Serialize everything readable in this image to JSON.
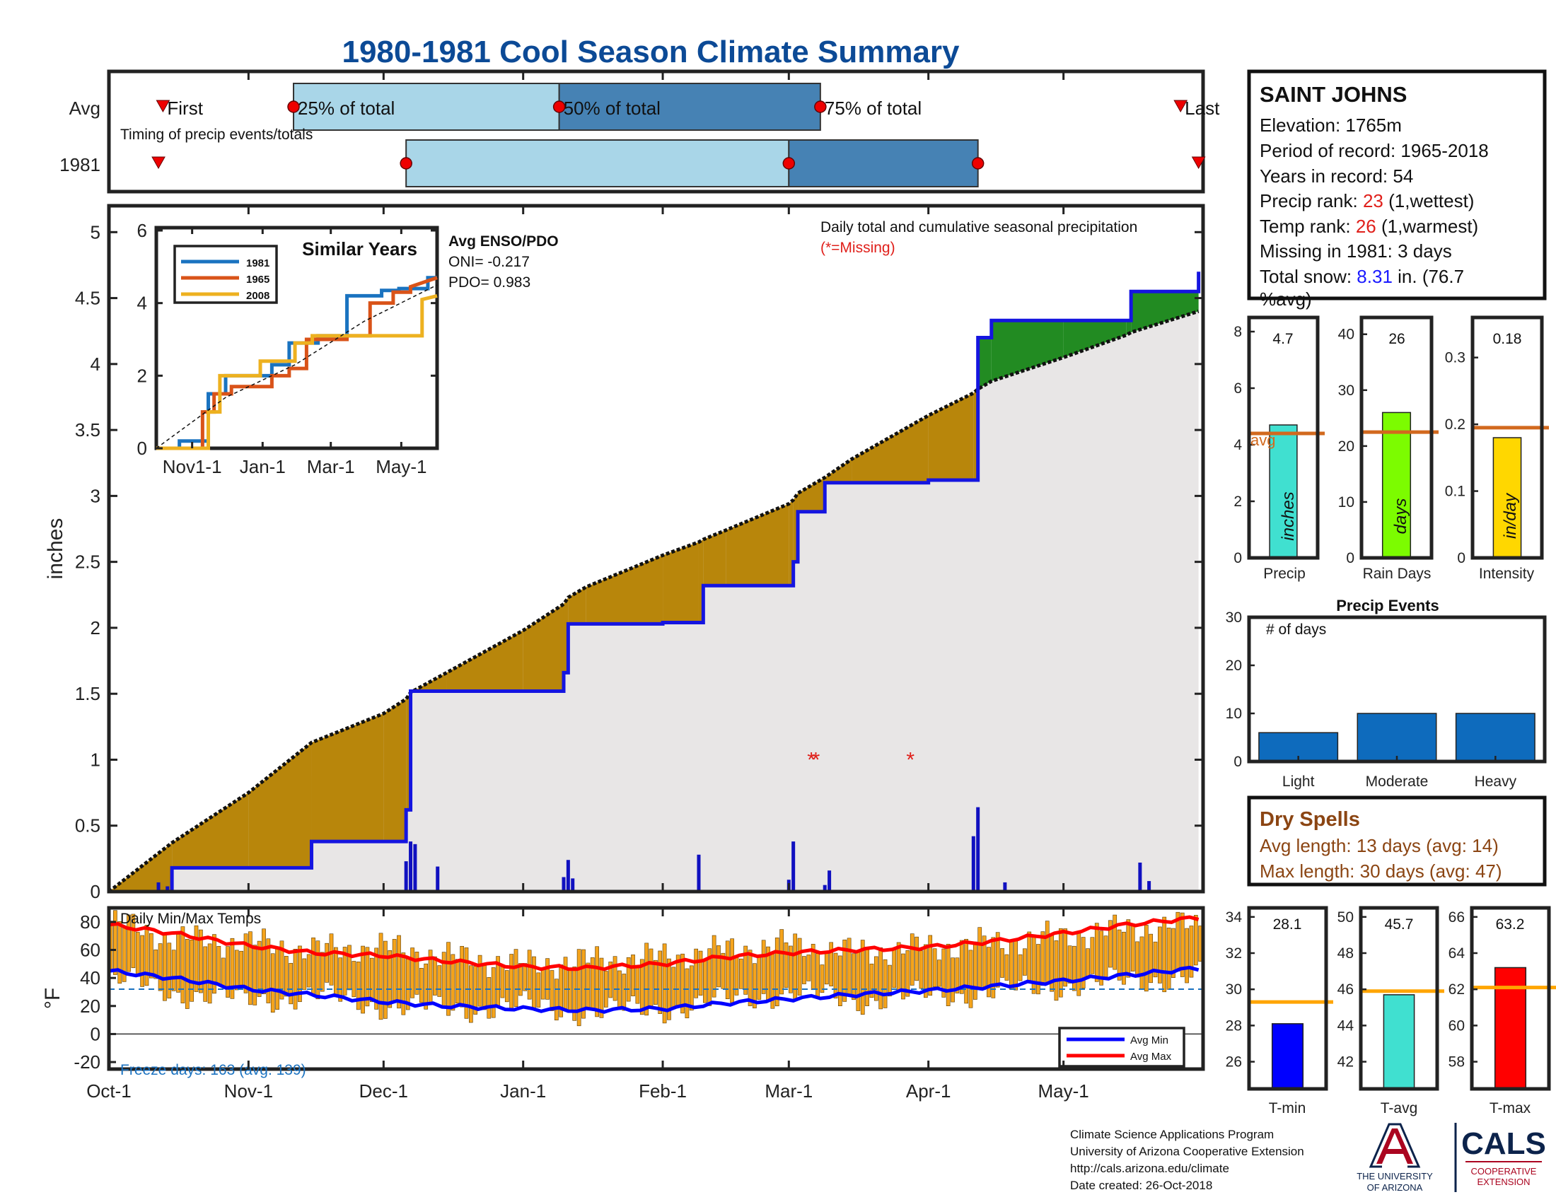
{
  "title": "1980-1981 Cool Season Climate Summary",
  "timing": {
    "rows": [
      "Avg",
      "1981"
    ],
    "caption": "Timing of precip events/totals",
    "labels": {
      "first": "First",
      "p25": "25% of total",
      "p50": "50% of total",
      "p75": "75% of total",
      "last": "Last"
    },
    "avg": {
      "first": "Oct-13",
      "p25": "Nov-11",
      "p50": "Jan-9",
      "p75": "Mar-8",
      "last": "May-27"
    },
    "year": {
      "first": "Oct-12",
      "p25": "Dec-6",
      "p50": "Mar-1",
      "p75": "Apr-12",
      "last": "May-31"
    }
  },
  "station": {
    "name": "SAINT JOHNS",
    "elevation_line": "Elevation: 1765m",
    "period_line": "Period of record: 1965-2018",
    "years_line": "Years in record: 54",
    "precip_rank_prefix": "Precip rank: ",
    "precip_rank": "23",
    "precip_rank_suffix": " (1,wettest)",
    "temp_rank_prefix": "Temp rank: ",
    "temp_rank": "26",
    "temp_rank_suffix": " (1,warmest)",
    "missing_line": "Missing in 1981: 3 days",
    "snow_prefix": "Total snow: ",
    "snow_value": "8.31",
    "snow_suffix": " in. (76.7",
    "snow_line2": "%avg)"
  },
  "colors": {
    "title": "#0c4a96",
    "rank": "#e0201b",
    "snow": "#1a1aff",
    "deficit": "#b8860b",
    "surplus": "#228b22",
    "avg_fill": "#e8e6e6",
    "obs_line": "#1515e0",
    "tmin": "#0000ff",
    "tmax": "#ff0000",
    "bars_temp": "#f5a41c",
    "avg_line": "#d2691e",
    "freeze": "#1b72c0",
    "dry": "#8b4513",
    "light_blue": "#a9d6e8",
    "steel_blue": "#4682b4"
  },
  "main_chart": {
    "legend_title": "Daily total and cumulative seasonal precipitation",
    "missing_note": "(*=Missing)",
    "ylabel": "inches",
    "yticks": [
      "0",
      "0.5",
      "1",
      "1.5",
      "2",
      "2.5",
      "3",
      "3.5",
      "4",
      "4.5",
      "5"
    ],
    "enso": {
      "title": "Avg ENSO/PDO",
      "oni": "ONI= -0.217",
      "pdo": "PDO= 0.983"
    }
  },
  "x_axis": {
    "labels": [
      "Oct-1",
      "Nov-1",
      "Dec-1",
      "Jan-1",
      "Feb-1",
      "Mar-1",
      "Apr-1",
      "May-1"
    ]
  },
  "inset": {
    "title": "Similar Years",
    "legend": [
      "1981",
      "1965",
      "2008"
    ],
    "xticks": [
      "Nov1-1",
      "Jan-1",
      "Mar-1",
      "May-1"
    ],
    "yticks": [
      "0",
      "2",
      "4",
      "6"
    ]
  },
  "temp_chart": {
    "title": "Daily Min/Max Temps",
    "ylabel": "°F",
    "yticks": [
      "80",
      "60",
      "40",
      "20",
      "0",
      "-20"
    ],
    "legend_min": "Avg Min",
    "legend_max": "Avg Max",
    "freeze": "Freeze days: 163 (avg. 139)"
  },
  "summary_bars": {
    "precip": {
      "label": "Precip",
      "value": "4.7",
      "unit": "inches",
      "avg_label": "avg",
      "yticks": [
        "0",
        "2",
        "4",
        "6",
        "8"
      ]
    },
    "raindays": {
      "label": "Rain Days",
      "value": "26",
      "unit": "days",
      "yticks": [
        "0",
        "10",
        "20",
        "30",
        "40"
      ]
    },
    "intensity": {
      "label": "Intensity",
      "value": "0.18",
      "unit": "in/day",
      "yticks": [
        "0",
        "0.1",
        "0.2",
        "0.3"
      ]
    }
  },
  "events": {
    "title": "Precip Events",
    "ylabel": "# of days",
    "categories": [
      "Light",
      "Moderate",
      "Heavy"
    ],
    "yticks": [
      "0",
      "10",
      "20",
      "30"
    ]
  },
  "dry_spells": {
    "title": "Dry Spells",
    "avg_line": "Avg length: 13 days (avg: 14)",
    "max_line": "Max length: 30 days (avg: 47)"
  },
  "temp_bars": {
    "tmin": {
      "label": "T-min",
      "value": "28.1",
      "yticks": [
        "26",
        "28",
        "30",
        "32",
        "34"
      ]
    },
    "tavg": {
      "label": "T-avg",
      "value": "45.7",
      "yticks": [
        "42",
        "44",
        "46",
        "48",
        "50"
      ]
    },
    "tmax": {
      "label": "T-max",
      "value": "63.2",
      "yticks": [
        "58",
        "60",
        "62",
        "64",
        "66"
      ]
    }
  },
  "footer": {
    "line1": "Climate Science Applications Program",
    "line2": "University of Arizona Cooperative Extension",
    "line3": "http://cals.arizona.edu/climate",
    "line4": " Date created: 26-Oct-2018",
    "ua_line1": "THE UNIVERSITY",
    "ua_line2": "OF ARIZONA",
    "cals": "CALS",
    "coop1": "COOPERATIVE",
    "coop2": "EXTENSION"
  },
  "chart_data": {
    "type": "area",
    "title": "1980-1981 Cool Season Climate Summary",
    "xlabel": "",
    "ylabel": "inches",
    "ylim": [
      0,
      5.2
    ],
    "x": [
      "Oct-1",
      "Oct-15",
      "Nov-1",
      "Nov-15",
      "Dec-1",
      "Dec-6",
      "Dec-7",
      "Dec-15",
      "Jan-1",
      "Jan-10",
      "Jan-11",
      "Jan-15",
      "Feb-1",
      "Feb-9",
      "Feb-10",
      "Feb-15",
      "Mar-1",
      "Mar-2",
      "Mar-3",
      "Mar-9",
      "Mar-15",
      "Apr-1",
      "Apr-11",
      "Apr-12",
      "Apr-15",
      "May-1",
      "May-15",
      "May-16",
      "May-31"
    ],
    "series": [
      {
        "values": [
          0.0,
          0.37,
          0.75,
          1.13,
          1.35,
          1.46,
          1.51,
          1.66,
          1.98,
          2.18,
          2.23,
          2.31,
          2.55,
          2.65,
          2.67,
          2.74,
          2.94,
          2.97,
          3.02,
          3.14,
          3.28,
          3.61,
          3.78,
          3.81,
          3.87,
          4.05,
          4.22,
          4.24,
          4.4
        ]
      },
      {
        "values": [
          0.0,
          0.18,
          0.18,
          0.38,
          0.38,
          0.62,
          1.52,
          1.52,
          1.52,
          1.66,
          2.03,
          2.03,
          2.04,
          2.04,
          2.32,
          2.32,
          2.32,
          2.5,
          2.88,
          3.1,
          3.1,
          3.12,
          3.12,
          4.2,
          4.33,
          4.33,
          4.33,
          4.55,
          4.7
        ]
      }
    ],
    "daily_precip": [
      {
        "date": "Oct-12",
        "value": 0.07
      },
      {
        "date": "Oct-14",
        "value": 0.04
      },
      {
        "date": "Dec-6",
        "value": 0.23
      },
      {
        "date": "Dec-7",
        "value": 0.38
      },
      {
        "date": "Dec-8",
        "value": 0.36
      },
      {
        "date": "Dec-13",
        "value": 0.19
      },
      {
        "date": "Jan-10",
        "value": 0.11
      },
      {
        "date": "Jan-11",
        "value": 0.24
      },
      {
        "date": "Jan-12",
        "value": 0.1
      },
      {
        "date": "Feb-9",
        "value": 0.28
      },
      {
        "date": "Mar-1",
        "value": 0.09
      },
      {
        "date": "Mar-2",
        "value": 0.38
      },
      {
        "date": "Mar-9",
        "value": 0.05
      },
      {
        "date": "Mar-10",
        "value": 0.16
      },
      {
        "date": "Apr-11",
        "value": 0.42
      },
      {
        "date": "Apr-12",
        "value": 0.64
      },
      {
        "date": "Apr-18",
        "value": 0.07
      },
      {
        "date": "May-18",
        "value": 0.22
      },
      {
        "date": "May-20",
        "value": 0.08
      }
    ],
    "missing_dates": [
      "Mar-6",
      "Mar-7",
      "Mar-28"
    ],
    "temps": {
      "ylim": [
        -25,
        90
      ],
      "x": [
        "Oct-1",
        "Oct-15",
        "Nov-1",
        "Nov-15",
        "Dec-1",
        "Dec-15",
        "Jan-1",
        "Jan-15",
        "Feb-1",
        "Feb-15",
        "Mar-1",
        "Mar-15",
        "Apr-1",
        "Apr-15",
        "May-1",
        "May-15",
        "May-31"
      ],
      "avg_max": [
        78,
        72,
        63,
        58,
        56,
        52,
        48,
        47,
        50,
        55,
        58,
        60,
        62,
        66,
        72,
        78,
        83
      ],
      "avg_min": [
        45,
        40,
        32,
        28,
        23,
        20,
        18,
        17,
        18,
        22,
        25,
        28,
        31,
        34,
        38,
        42,
        47
      ],
      "obs_max": [
        80,
        68,
        65,
        60,
        62,
        55,
        50,
        52,
        55,
        60,
        64,
        58,
        62,
        65,
        70,
        75,
        78
      ],
      "obs_min": [
        40,
        30,
        24,
        28,
        20,
        18,
        20,
        16,
        18,
        24,
        30,
        24,
        28,
        30,
        35,
        38,
        42
      ],
      "freeze_line": 32
    },
    "similar_years": {
      "xlim": [
        0,
        243
      ],
      "ylim": [
        0,
        6
      ],
      "series": [
        {
          "name": "1981",
          "x": [
            0,
            20,
            20,
            45,
            45,
            60,
            60,
            80,
            80,
            100,
            100,
            115,
            115,
            140,
            140,
            165,
            165,
            195,
            195,
            210,
            210,
            235,
            235,
            243
          ],
          "y": [
            0,
            0,
            0.2,
            0.2,
            1.5,
            1.5,
            2.0,
            2.0,
            2.0,
            2.0,
            2.3,
            2.3,
            2.9,
            2.9,
            3.1,
            3.1,
            4.2,
            4.2,
            4.35,
            4.35,
            4.4,
            4.4,
            4.7,
            4.7
          ]
        },
        {
          "name": "1965",
          "x": [
            0,
            40,
            40,
            50,
            50,
            65,
            65,
            100,
            100,
            115,
            115,
            130,
            130,
            165,
            165,
            185,
            185,
            205,
            205,
            220,
            220,
            243
          ],
          "y": [
            0,
            0,
            1.0,
            1.0,
            1.5,
            1.5,
            1.7,
            1.7,
            2.0,
            2.0,
            2.2,
            2.2,
            3.0,
            3.0,
            3.1,
            3.1,
            4.0,
            4.0,
            4.3,
            4.3,
            4.45,
            4.7
          ]
        },
        {
          "name": "2008",
          "x": [
            0,
            45,
            45,
            55,
            55,
            90,
            90,
            120,
            120,
            135,
            135,
            230,
            230,
            243
          ],
          "y": [
            0,
            0,
            1.0,
            1.0,
            2.0,
            2.0,
            2.4,
            2.4,
            2.9,
            2.9,
            3.1,
            3.1,
            4.1,
            4.2
          ]
        },
        {
          "name": "avg",
          "x": [
            0,
            60,
            120,
            180,
            243
          ],
          "y": [
            0,
            1.4,
            2.3,
            3.5,
            4.5
          ]
        }
      ]
    },
    "summary_bars": {
      "precip": {
        "value": 4.7,
        "avg": 4.4,
        "ylim": [
          0,
          8.5
        ]
      },
      "raindays": {
        "value": 26,
        "avg": 22.5,
        "ylim": [
          0,
          43
        ]
      },
      "intensity": {
        "value": 0.18,
        "avg": 0.195,
        "ylim": [
          0,
          0.36
        ]
      }
    },
    "events": {
      "categories": [
        "Light",
        "Moderate",
        "Heavy"
      ],
      "values": [
        6,
        10,
        10
      ],
      "ylim": [
        0,
        30
      ]
    },
    "temp_bars": {
      "tmin": {
        "value": 28.1,
        "avg": 29.3,
        "ylim": [
          24.5,
          34.5
        ]
      },
      "tavg": {
        "value": 45.7,
        "avg": 45.9,
        "ylim": [
          40.5,
          50.5
        ]
      },
      "tmax": {
        "value": 63.2,
        "avg": 62.1,
        "ylim": [
          56.5,
          66.5
        ]
      }
    }
  }
}
